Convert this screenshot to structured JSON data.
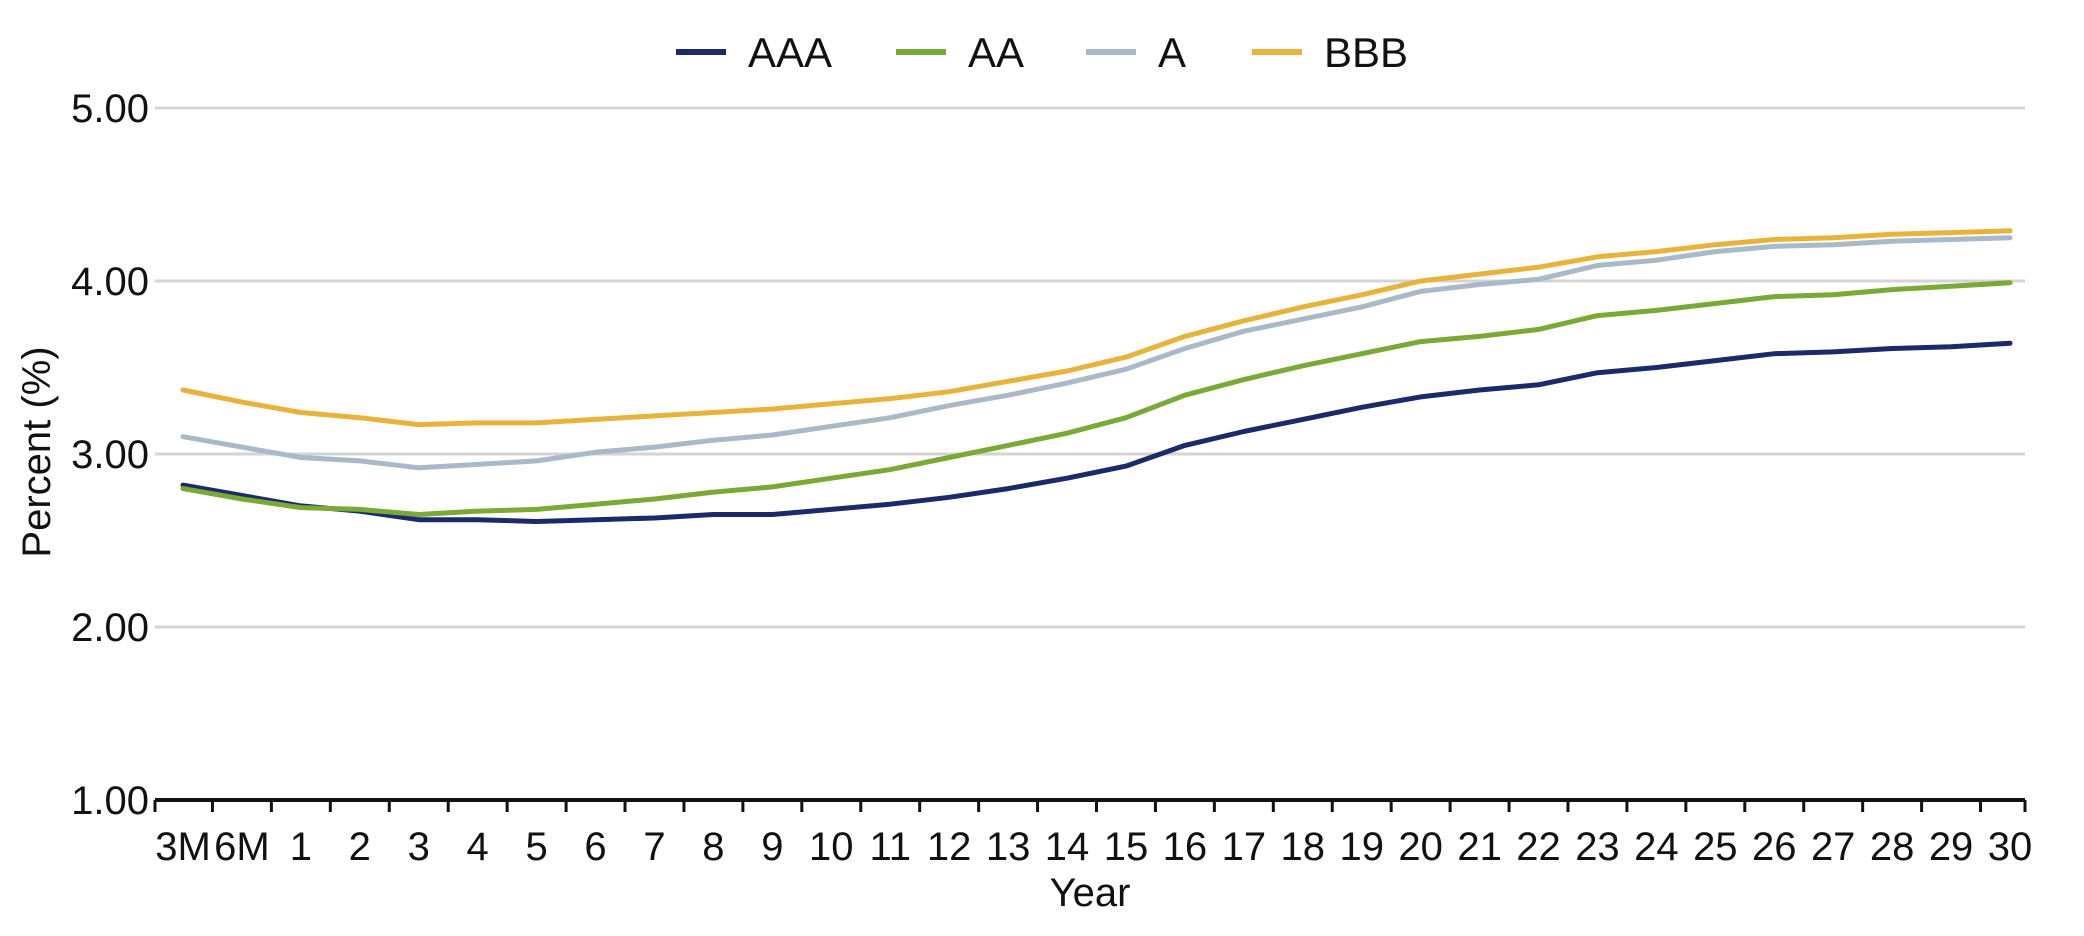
{
  "chart_data": {
    "type": "line",
    "title": "",
    "xlabel": "Year",
    "ylabel": "Percent (%)",
    "ylim": [
      1.0,
      5.0
    ],
    "yticks": [
      "1.00",
      "2.00",
      "3.00",
      "4.00",
      "5.00"
    ],
    "grid": true,
    "legend_position": "top-center",
    "categories": [
      "3M",
      "6M",
      "1",
      "2",
      "3",
      "4",
      "5",
      "6",
      "7",
      "8",
      "9",
      "10",
      "11",
      "12",
      "13",
      "14",
      "15",
      "16",
      "17",
      "18",
      "19",
      "20",
      "21",
      "22",
      "23",
      "24",
      "25",
      "26",
      "27",
      "28",
      "29",
      "30"
    ],
    "series": [
      {
        "name": "AAA",
        "color": "#1b2a6b",
        "values": [
          2.82,
          2.76,
          2.7,
          2.67,
          2.62,
          2.62,
          2.61,
          2.62,
          2.63,
          2.65,
          2.65,
          2.68,
          2.71,
          2.75,
          2.8,
          2.86,
          2.93,
          3.05,
          3.13,
          3.2,
          3.27,
          3.33,
          3.37,
          3.4,
          3.47,
          3.5,
          3.54,
          3.58,
          3.59,
          3.61,
          3.62,
          3.64
        ]
      },
      {
        "name": "AA",
        "color": "#78aa35",
        "values": [
          2.8,
          2.74,
          2.69,
          2.68,
          2.65,
          2.67,
          2.68,
          2.71,
          2.74,
          2.78,
          2.81,
          2.86,
          2.91,
          2.98,
          3.05,
          3.12,
          3.21,
          3.34,
          3.43,
          3.51,
          3.58,
          3.65,
          3.68,
          3.72,
          3.8,
          3.83,
          3.87,
          3.91,
          3.92,
          3.95,
          3.97,
          3.99
        ]
      },
      {
        "name": "A",
        "color": "#a9b9c7",
        "values": [
          3.1,
          3.04,
          2.98,
          2.96,
          2.92,
          2.94,
          2.96,
          3.01,
          3.04,
          3.08,
          3.11,
          3.16,
          3.21,
          3.28,
          3.34,
          3.41,
          3.49,
          3.61,
          3.71,
          3.78,
          3.85,
          3.94,
          3.98,
          4.01,
          4.09,
          4.12,
          4.17,
          4.2,
          4.21,
          4.23,
          4.24,
          4.25
        ]
      },
      {
        "name": "BBB",
        "color": "#e8b33a",
        "values": [
          3.37,
          3.3,
          3.24,
          3.21,
          3.17,
          3.18,
          3.18,
          3.2,
          3.22,
          3.24,
          3.26,
          3.29,
          3.32,
          3.36,
          3.42,
          3.48,
          3.56,
          3.68,
          3.77,
          3.85,
          3.92,
          4.0,
          4.04,
          4.08,
          4.14,
          4.17,
          4.21,
          4.24,
          4.25,
          4.27,
          4.28,
          4.29
        ]
      }
    ]
  }
}
